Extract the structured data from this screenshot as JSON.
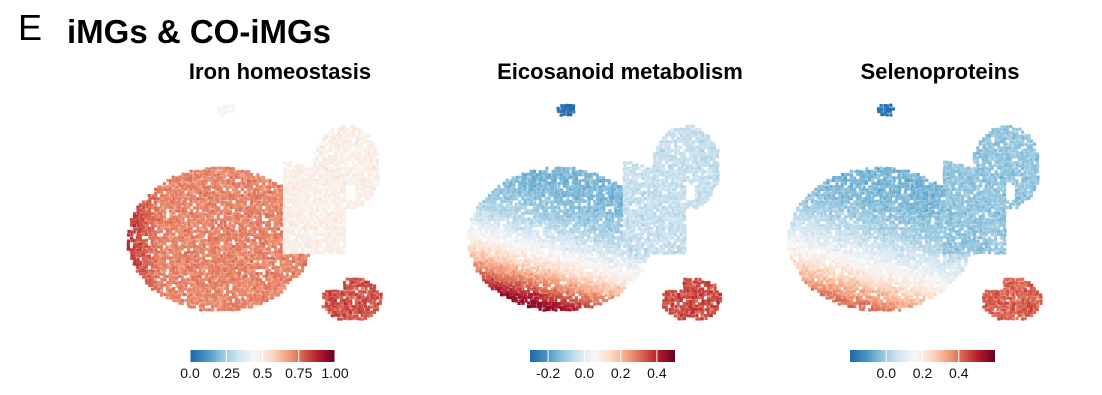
{
  "figure": {
    "panel_letter": "E",
    "title": "iMGs & CO-iMGs"
  },
  "colormap": {
    "stops": [
      "#2166ac",
      "#4393c3",
      "#92c5de",
      "#d1e5f0",
      "#f7f7f7",
      "#fddbc7",
      "#f4a582",
      "#d6604d",
      "#b2182b",
      "#67001f"
    ]
  },
  "chart_data": [
    {
      "type": "scatter",
      "title": "Iron homeostasis",
      "xlabel": "",
      "ylabel": "",
      "grid": false,
      "color_scale": {
        "min": 0.0,
        "max": 1.0,
        "ticks": [
          0.0,
          0.25,
          0.5,
          0.75,
          1.0
        ],
        "tick_labels": [
          "0.0",
          "0.25",
          "0.5",
          "0.75",
          "1.00"
        ]
      },
      "regions": {
        "main_body": 0.72,
        "left_edge": 0.88,
        "right_arm": 0.48,
        "top_islet": 0.45,
        "bottom_cluster": 0.8
      }
    },
    {
      "type": "scatter",
      "title": "Eicosanoid metabolism",
      "xlabel": "",
      "ylabel": "",
      "grid": false,
      "color_scale": {
        "min": -0.3,
        "max": 0.5,
        "ticks": [
          -0.2,
          0.0,
          0.2,
          0.4
        ],
        "tick_labels": [
          "-0.2",
          "0.0",
          "0.2",
          "0.4"
        ]
      },
      "regions": {
        "main_top": -0.15,
        "main_bottom": 0.45,
        "right_arm": -0.05,
        "top_islet": -0.28,
        "bottom_cluster": 0.35
      }
    },
    {
      "type": "scatter",
      "title": "Selenoproteins",
      "xlabel": "",
      "ylabel": "",
      "grid": false,
      "color_scale": {
        "min": -0.2,
        "max": 0.6,
        "ticks": [
          0.0,
          0.2,
          0.4
        ],
        "tick_labels": [
          "0.0",
          "0.2",
          "0.4"
        ]
      },
      "regions": {
        "main_top": -0.05,
        "main_bottom": 0.4,
        "right_arm": -0.02,
        "top_islet": -0.18,
        "bottom_cluster": 0.42
      }
    }
  ]
}
